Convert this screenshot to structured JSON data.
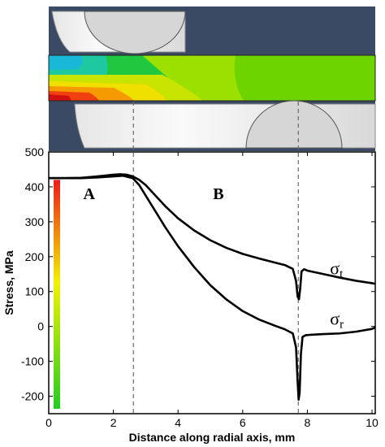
{
  "chart_data": {
    "type": "line",
    "xlabel": "Distance along radial axis, mm",
    "ylabel": "Stress, MPa",
    "xlim": [
      0,
      10.1
    ],
    "ylim": [
      -250,
      500
    ],
    "x_ticks": [
      0,
      2,
      4,
      6,
      8,
      10
    ],
    "y_ticks": [
      -200,
      -100,
      0,
      100,
      200,
      300,
      400,
      500
    ],
    "region_labels": [
      {
        "text": "A",
        "x": 1.25,
        "y": 365
      },
      {
        "text": "B",
        "x": 5.25,
        "y": 365
      }
    ],
    "vlines": [
      2.62,
      7.72
    ],
    "series": [
      {
        "name": "σt",
        "label_main": "σ",
        "label_sub": "t",
        "label_pos": {
          "x": 8.7,
          "y": 150
        },
        "x": [
          0,
          0.5,
          1.0,
          1.5,
          2.0,
          2.2,
          2.4,
          2.6,
          2.8,
          3.0,
          3.3,
          3.6,
          4.0,
          4.5,
          5.0,
          5.5,
          6.0,
          6.5,
          7.0,
          7.3,
          7.55,
          7.65,
          7.7,
          7.74,
          7.78,
          7.82,
          7.9,
          8.0,
          8.5,
          9.0,
          9.5,
          10.0,
          10.1
        ],
        "y": [
          425,
          425,
          426,
          430,
          435,
          436,
          435,
          430,
          420,
          405,
          375,
          345,
          310,
          275,
          247,
          225,
          208,
          195,
          183,
          176,
          165,
          130,
          85,
          78,
          110,
          158,
          164,
          160,
          150,
          140,
          131,
          124,
          122
        ]
      },
      {
        "name": "σr",
        "label_main": "σ",
        "label_sub": "r",
        "label_pos": {
          "x": 8.7,
          "y": 5
        },
        "x": [
          0,
          0.5,
          1.0,
          1.5,
          2.0,
          2.3,
          2.6,
          2.8,
          3.0,
          3.3,
          3.6,
          4.0,
          4.5,
          5.0,
          5.5,
          6.0,
          6.5,
          7.0,
          7.3,
          7.55,
          7.65,
          7.7,
          7.73,
          7.76,
          7.8,
          7.85,
          7.95,
          8.1,
          8.5,
          9.0,
          9.5,
          10.0,
          10.1
        ],
        "y": [
          425,
          425,
          425,
          427,
          430,
          432,
          425,
          405,
          375,
          330,
          285,
          230,
          170,
          118,
          77,
          44,
          20,
          2,
          -8,
          -20,
          -60,
          -160,
          -210,
          -190,
          -80,
          -30,
          -25,
          -24,
          -22,
          -20,
          -15,
          -7,
          -3
        ]
      }
    ]
  },
  "colors": {
    "line": "#000000",
    "dash": "#6a6a6a",
    "navy_bg": "#3a4a64",
    "contour_green": "#6ed400",
    "colorbar_top": "#ee1c1c",
    "colorbar_mid": "#f2f200",
    "colorbar_bottom": "#22cc22"
  }
}
